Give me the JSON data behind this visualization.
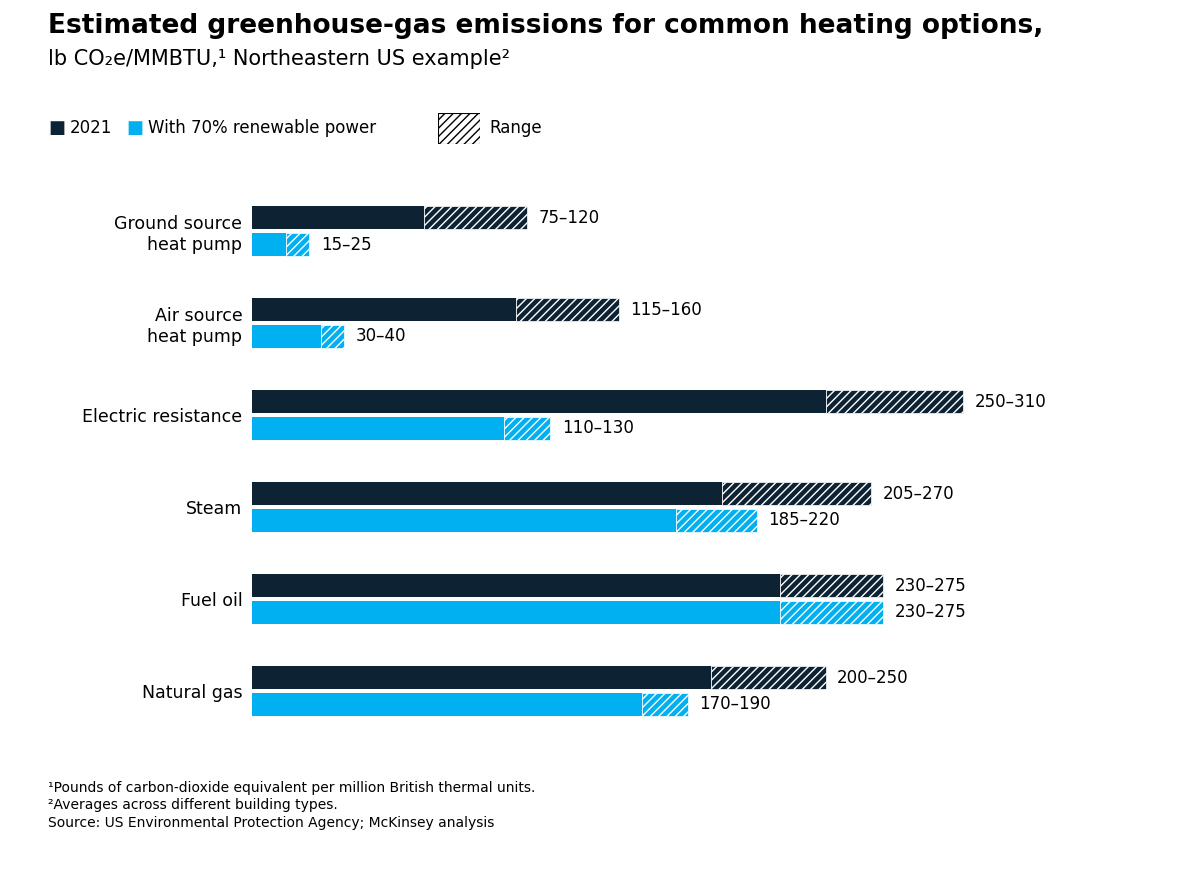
{
  "title_line1": "Estimated greenhouse-gas emissions for common heating options,",
  "title_line2": "lb CO₂e/MMBTU,¹ Northeastern US example²",
  "footnote1": "¹Pounds of carbon-dioxide equivalent per million British thermal units.",
  "footnote2": "²Averages across different building types.",
  "footnote3": "Source: US Environmental Protection Agency; McKinsey analysis",
  "dark_color": "#0d2233",
  "cyan_color": "#00b0f0",
  "background_color": "#ffffff",
  "categories": [
    "Ground source\nheat pump",
    "Air source\nheat pump",
    "Electric resistance",
    "Steam",
    "Fuel oil",
    "Natural gas"
  ],
  "dark_base": [
    75,
    115,
    250,
    205,
    230,
    200
  ],
  "dark_range": [
    45,
    45,
    60,
    65,
    45,
    50
  ],
  "cyan_base": [
    15,
    30,
    110,
    185,
    230,
    170
  ],
  "cyan_range": [
    10,
    10,
    20,
    35,
    45,
    20
  ],
  "dark_labels": [
    "75–120",
    "115–160",
    "250–310",
    "205–270",
    "230–275",
    "200–250"
  ],
  "cyan_labels": [
    "15–25",
    "30–40",
    "110–130",
    "185–220",
    "230–275",
    "170–190"
  ],
  "xmax": 340
}
